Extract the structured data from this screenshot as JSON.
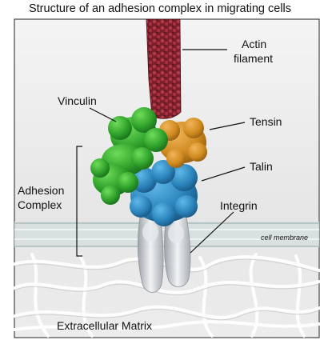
{
  "title": "Structure of an adhesion complex in migrating cells",
  "labels": {
    "actin": [
      "Actin",
      "filament"
    ],
    "vinculin": "Vinculin",
    "tensin": "Tensin",
    "talin": "Talin",
    "integrin": "Integrin",
    "adhesion_complex": [
      "Adhesion",
      "Complex"
    ],
    "cell_membrane": "cell membrane",
    "ecm": "Extracellular Matrix"
  },
  "colors": {
    "actin": "#8b2430",
    "vinculin": "#2e9e2e",
    "tensin": "#d08a1e",
    "talin": "#2b7fb5",
    "integrin": "#c8ccd0",
    "membrane": "#d8e0e0",
    "matrix": "#e8e8e8"
  }
}
